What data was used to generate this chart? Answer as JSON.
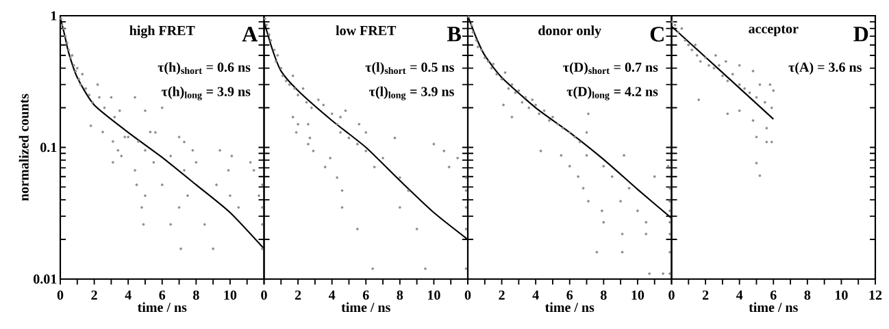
{
  "chart_data": [
    {
      "type": "scatter",
      "title": "high FRET",
      "xlabel": "time / ns",
      "ylabel": "normalized counts",
      "annotations": [
        "A",
        "τ(h)$_{short}$ = 0.6 ns",
        "τ(h)$_{long}$ = 3.9 ns"
      ],
      "xlim": [
        0,
        12
      ],
      "ylim": [
        0.01,
        1
      ],
      "log": "y",
      "xticks": [
        0,
        {
          "value": 1,
          "label": null
        },
        2,
        {
          "value": 3,
          "label": null
        },
        4,
        {
          "value": 5,
          "label": null
        },
        6,
        {
          "value": 7,
          "label": null
        },
        8,
        {
          "value": 9,
          "label": null
        },
        10,
        {
          "value": 11,
          "label": null
        },
        {
          "value": 12,
          "label": null
        }
      ],
      "yticks": [
        1,
        {
          "value": 0.9,
          "label": null
        },
        {
          "value": 0.8,
          "label": null
        },
        {
          "value": 0.7,
          "label": null
        },
        {
          "value": 0.6,
          "label": null
        },
        {
          "value": 0.5,
          "label": null
        },
        {
          "value": 0.4,
          "label": null
        },
        {
          "value": 0.3,
          "label": null
        },
        {
          "value": 0.2,
          "label": null
        },
        0.1,
        {
          "value": 0.09,
          "label": null
        },
        {
          "value": 0.08,
          "label": null
        },
        {
          "value": 0.07,
          "label": null
        },
        {
          "value": 0.06,
          "label": null
        },
        {
          "value": 0.05,
          "label": null
        },
        {
          "value": 0.04,
          "label": null
        },
        {
          "value": 0.03,
          "label": null
        },
        {
          "value": 0.02,
          "label": null
        },
        0.01
      ],
      "series": [
        {
          "type": "scatter",
          "marker": "circle",
          "color": "#8c8c8c",
          "x": [
            0.05,
            0.1,
            0.2,
            0.3,
            0.4,
            0.5,
            0.6,
            0.7,
            0.8,
            0.9,
            1.0,
            1.1,
            1.2,
            1.3,
            1.5,
            1.7,
            1.9,
            2.2,
            2.3,
            2.6,
            3.0,
            3.2,
            3.5,
            4.4,
            5.0,
            5.6,
            6.0,
            7.0,
            7.3,
            1.8,
            2.5,
            3.8,
            4.6,
            3.1,
            4.0,
            5.3,
            3.4,
            5.0,
            7.8,
            9.4,
            3.6,
            6.5,
            10.1,
            3.1,
            5.5,
            8.0,
            11.2,
            4.4,
            7.3,
            9.9,
            11.4,
            4.5,
            6.0,
            9.2,
            11.9,
            5.0,
            7.5,
            10.0,
            11.7,
            4.8,
            7.0,
            10.5,
            11.9,
            4.9,
            6.5,
            8.5,
            11.9,
            7.1,
            9.0,
            11.9
          ],
          "values": [
            0.95,
            0.85,
            0.8,
            0.7,
            0.62,
            0.55,
            0.48,
            0.5,
            0.42,
            0.38,
            0.4,
            0.33,
            0.3,
            0.36,
            0.28,
            0.25,
            0.22,
            0.3,
            0.24,
            0.2,
            0.24,
            0.17,
            0.19,
            0.24,
            0.19,
            0.13,
            0.2,
            0.12,
            0.11,
            0.146,
            0.131,
            0.12,
            0.111,
            0.111,
            0.12,
            0.131,
            0.095,
            0.095,
            0.095,
            0.095,
            0.086,
            0.086,
            0.086,
            0.077,
            0.077,
            0.077,
            0.077,
            0.067,
            0.067,
            0.067,
            0.067,
            0.052,
            0.052,
            0.052,
            0.052,
            0.043,
            0.043,
            0.043,
            0.043,
            0.035,
            0.035,
            0.035,
            0.035,
            0.026,
            0.026,
            0.026,
            0.026,
            0.017,
            0.017,
            0.017
          ]
        },
        {
          "type": "line",
          "marker": "none",
          "color": "#000000",
          "x": [
            0,
            0.25,
            0.5,
            1,
            2,
            4,
            6,
            8,
            10,
            12
          ],
          "values": [
            0.97,
            0.72,
            0.52,
            0.34,
            0.21,
            0.13,
            0.084,
            0.052,
            0.032,
            0.017
          ]
        }
      ]
    },
    {
      "type": "scatter",
      "title": "low FRET",
      "xlabel": "time / ns",
      "annotations": [
        "B",
        "τ(l)$_{short}$ = 0.5 ns",
        "τ(l)$_{long}$ = 3.9 ns"
      ],
      "xlim": [
        0,
        12
      ],
      "ylim": [
        0.01,
        1
      ],
      "log": "y",
      "xticks": [
        0,
        {
          "value": 1,
          "label": null
        },
        2,
        {
          "value": 3,
          "label": null
        },
        4,
        {
          "value": 5,
          "label": null
        },
        6,
        {
          "value": 7,
          "label": null
        },
        8,
        {
          "value": 9,
          "label": null
        },
        10,
        {
          "value": 11,
          "label": null
        },
        {
          "value": 12,
          "label": null
        }
      ],
      "yticks": [
        1,
        {
          "value": 0.9,
          "label": null
        },
        {
          "value": 0.8,
          "label": null
        },
        {
          "value": 0.7,
          "label": null
        },
        {
          "value": 0.6,
          "label": null
        },
        {
          "value": 0.5,
          "label": null
        },
        {
          "value": 0.4,
          "label": null
        },
        {
          "value": 0.3,
          "label": null
        },
        {
          "value": 0.2,
          "label": null
        },
        0.1,
        {
          "value": 0.09,
          "label": null
        },
        {
          "value": 0.08,
          "label": null
        },
        {
          "value": 0.07,
          "label": null
        },
        {
          "value": 0.06,
          "label": null
        },
        {
          "value": 0.05,
          "label": null
        },
        {
          "value": 0.04,
          "label": null
        },
        {
          "value": 0.03,
          "label": null
        },
        {
          "value": 0.02,
          "label": null
        },
        0.01
      ],
      "tick_labels": "x",
      "series": [
        {
          "type": "scatter",
          "marker": "circle",
          "color": "#8c8c8c",
          "x": [
            0.05,
            0.15,
            0.3,
            0.4,
            0.6,
            0.7,
            0.8,
            1.0,
            1.1,
            1.3,
            1.5,
            1.7,
            1.8,
            2.0,
            2.3,
            2.5,
            2.8,
            3.2,
            3.5,
            4.0,
            4.5,
            4.8,
            1.7,
            2.6,
            2.0,
            4.3,
            5.6,
            1.9,
            4.5,
            6.0,
            2.7,
            5.0,
            7.7,
            2.6,
            5.5,
            10.0,
            2.9,
            6.0,
            10.6,
            3.9,
            7.0,
            11.4,
            3.6,
            6.5,
            10.9,
            4.3,
            8.0,
            11.9,
            4.6,
            8.5,
            11.9,
            4.6,
            8.0,
            11.9,
            5.5,
            9.0,
            11.9,
            6.4,
            9.5,
            11.9
          ],
          "values": [
            0.95,
            0.85,
            0.72,
            0.65,
            0.55,
            0.45,
            0.5,
            0.4,
            0.35,
            0.32,
            0.3,
            0.35,
            0.28,
            0.25,
            0.28,
            0.22,
            0.2,
            0.23,
            0.21,
            0.18,
            0.17,
            0.19,
            0.17,
            0.15,
            0.15,
            0.15,
            0.15,
            0.13,
            0.13,
            0.13,
            0.118,
            0.118,
            0.118,
            0.106,
            0.106,
            0.106,
            0.094,
            0.094,
            0.094,
            0.083,
            0.083,
            0.083,
            0.071,
            0.071,
            0.071,
            0.059,
            0.059,
            0.059,
            0.047,
            0.047,
            0.047,
            0.035,
            0.035,
            0.035,
            0.024,
            0.024,
            0.024,
            0.012,
            0.012,
            0.012
          ]
        },
        {
          "type": "line",
          "marker": "none",
          "color": "#000000",
          "x": [
            0,
            0.5,
            1,
            2,
            4,
            6,
            8,
            10,
            12
          ],
          "values": [
            0.9,
            0.55,
            0.38,
            0.27,
            0.16,
            0.1,
            0.056,
            0.032,
            0.02
          ]
        }
      ]
    },
    {
      "type": "scatter",
      "title": "donor only",
      "xlabel": "time / ns",
      "annotations": [
        "C",
        "τ(D)$_{short}$ = 0.7 ns",
        "τ(D)$_{long}$ = 4.2 ns"
      ],
      "xlim": [
        0,
        12
      ],
      "ylim": [
        0.01,
        1
      ],
      "log": "y",
      "xticks": [
        0,
        {
          "value": 1,
          "label": null
        },
        2,
        {
          "value": 3,
          "label": null
        },
        4,
        {
          "value": 5,
          "label": null
        },
        6,
        {
          "value": 7,
          "label": null
        },
        8,
        {
          "value": 9,
          "label": null
        },
        10,
        {
          "value": 11,
          "label": null
        },
        {
          "value": 12,
          "label": null
        }
      ],
      "yticks": [
        1,
        {
          "value": 0.9,
          "label": null
        },
        {
          "value": 0.8,
          "label": null
        },
        {
          "value": 0.7,
          "label": null
        },
        {
          "value": 0.6,
          "label": null
        },
        {
          "value": 0.5,
          "label": null
        },
        {
          "value": 0.4,
          "label": null
        },
        {
          "value": 0.3,
          "label": null
        },
        {
          "value": 0.2,
          "label": null
        },
        0.1,
        {
          "value": 0.09,
          "label": null
        },
        {
          "value": 0.08,
          "label": null
        },
        {
          "value": 0.07,
          "label": null
        },
        {
          "value": 0.06,
          "label": null
        },
        {
          "value": 0.05,
          "label": null
        },
        {
          "value": 0.04,
          "label": null
        },
        {
          "value": 0.03,
          "label": null
        },
        {
          "value": 0.02,
          "label": null
        },
        0.01
      ],
      "tick_labels": "x",
      "series": [
        {
          "type": "scatter",
          "marker": "circle",
          "color": "#8c8c8c",
          "x": [
            0.05,
            0.2,
            0.3,
            0.5,
            0.6,
            0.8,
            1.0,
            1.2,
            1.4,
            1.5,
            1.7,
            2.0,
            2.2,
            2.4,
            2.6,
            2.8,
            3.0,
            3.2,
            3.4,
            3.6,
            3.8,
            4.0,
            4.2,
            4.5,
            4.8,
            5.0,
            5.3,
            5.6,
            6.0,
            6.3,
            6.6,
            7.0,
            7.1,
            2.1,
            2.6,
            4.3,
            5.5,
            7.0,
            9.2,
            6.0,
            8.0,
            11.8,
            6.5,
            8.5,
            11.0,
            6.8,
            9.5,
            11.9,
            7.1,
            9.0,
            11.9,
            7.9,
            10.0,
            11.9,
            8.0,
            10.5,
            11.9,
            9.1,
            10.5,
            11.9,
            7.6,
            9.1,
            11.9,
            10.7,
            11.5,
            11.9
          ],
          "values": [
            0.98,
            0.85,
            0.75,
            0.65,
            0.58,
            0.55,
            0.48,
            0.45,
            0.4,
            0.43,
            0.36,
            0.33,
            0.37,
            0.28,
            0.3,
            0.26,
            0.27,
            0.22,
            0.24,
            0.2,
            0.23,
            0.21,
            0.18,
            0.19,
            0.16,
            0.17,
            0.15,
            0.14,
            0.13,
            0.12,
            0.11,
            0.13,
            0.18,
            0.21,
            0.17,
            0.094,
            0.087,
            0.087,
            0.087,
            0.072,
            0.072,
            0.072,
            0.06,
            0.06,
            0.06,
            0.049,
            0.049,
            0.049,
            0.039,
            0.039,
            0.039,
            0.033,
            0.033,
            0.033,
            0.027,
            0.027,
            0.027,
            0.022,
            0.022,
            0.022,
            0.016,
            0.016,
            0.016,
            0.011,
            0.011,
            0.011
          ]
        },
        {
          "type": "line",
          "marker": "none",
          "color": "#000000",
          "x": [
            0,
            0.5,
            1,
            2,
            4,
            6,
            8,
            10,
            12
          ],
          "values": [
            1.0,
            0.68,
            0.5,
            0.34,
            0.2,
            0.13,
            0.081,
            0.048,
            0.029
          ]
        }
      ]
    },
    {
      "type": "scatter",
      "title": "acceptor",
      "xlabel": "time / ns",
      "annotations": [
        "D",
        "τ(A) = 3.6 ns"
      ],
      "xlim": [
        0,
        12
      ],
      "ylim": [
        0.01,
        1
      ],
      "log": "y",
      "xticks": [
        0,
        {
          "value": 1,
          "label": null
        },
        2,
        {
          "value": 3,
          "label": null
        },
        4,
        {
          "value": 5,
          "label": null
        },
        6,
        {
          "value": 7,
          "label": null
        },
        8,
        {
          "value": 9,
          "label": null
        },
        10,
        {
          "value": 11,
          "label": null
        },
        12
      ],
      "yticks": [
        1,
        {
          "value": 0.9,
          "label": null
        },
        {
          "value": 0.8,
          "label": null
        },
        {
          "value": 0.7,
          "label": null
        },
        {
          "value": 0.6,
          "label": null
        },
        {
          "value": 0.5,
          "label": null
        },
        {
          "value": 0.4,
          "label": null
        },
        {
          "value": 0.3,
          "label": null
        },
        {
          "value": 0.2,
          "label": null
        },
        0.1,
        {
          "value": 0.09,
          "label": null
        },
        {
          "value": 0.08,
          "label": null
        },
        {
          "value": 0.07,
          "label": null
        },
        {
          "value": 0.06,
          "label": null
        },
        {
          "value": 0.05,
          "label": null
        },
        {
          "value": 0.04,
          "label": null
        },
        {
          "value": 0.03,
          "label": null
        },
        {
          "value": 0.02,
          "label": null
        },
        0.01
      ],
      "tick_labels": "x",
      "series": [
        {
          "type": "scatter",
          "marker": "circle",
          "color": "#8c8c8c",
          "x": [
            0.05,
            0.2,
            0.4,
            0.6,
            0.8,
            1.0,
            1.2,
            1.4,
            1.5,
            1.7,
            2.0,
            2.2,
            2.5,
            2.8,
            3.0,
            3.3,
            3.6,
            4.0,
            4.3,
            4.6,
            5.0,
            5.5,
            5.9,
            6.0,
            5.8,
            5.2,
            4.8,
            4.0,
            3.2,
            2.6,
            1.6,
            3.3,
            4.0,
            4.8,
            5.6,
            5.0,
            5.6,
            5.9,
            5.0,
            5.2
          ],
          "values": [
            0.9,
            0.85,
            0.75,
            0.8,
            0.65,
            0.6,
            0.55,
            0.6,
            0.5,
            0.45,
            0.48,
            0.42,
            0.4,
            0.42,
            0.35,
            0.32,
            0.36,
            0.3,
            0.28,
            0.26,
            0.24,
            0.22,
            0.2,
            0.27,
            0.3,
            0.3,
            0.38,
            0.42,
            0.45,
            0.5,
            0.23,
            0.18,
            0.19,
            0.16,
            0.14,
            0.12,
            0.11,
            0.11,
            0.076,
            0.061
          ]
        },
        {
          "type": "line",
          "marker": "none",
          "color": "#000000",
          "x": [
            0,
            3,
            6
          ],
          "values": [
            0.83,
            0.37,
            0.164
          ]
        }
      ]
    }
  ]
}
